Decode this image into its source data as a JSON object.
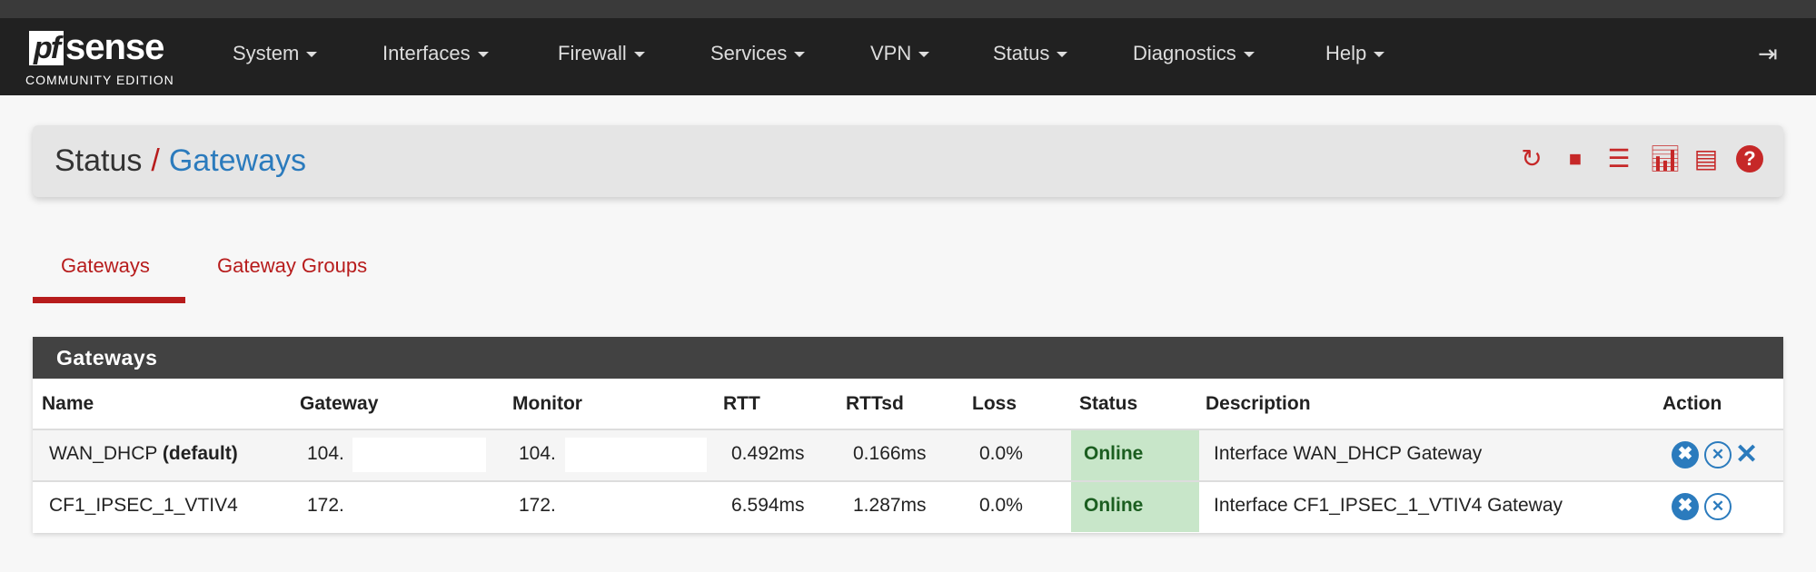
{
  "brand": {
    "logo_mark": "pf",
    "logo_word": "sense",
    "edition": "COMMUNITY EDITION"
  },
  "nav": {
    "items": [
      "System",
      "Interfaces",
      "Firewall",
      "Services",
      "VPN",
      "Status",
      "Diagnostics",
      "Help"
    ],
    "logout_icon": "sign-out-icon"
  },
  "breadcrumb": {
    "parent": "Status",
    "separator": "/",
    "current": "Gateways",
    "icons": [
      "refresh-icon",
      "stop-circle-icon",
      "sliders-icon",
      "bar-chart-icon",
      "list-icon",
      "help-icon"
    ]
  },
  "tabs": [
    {
      "label": "Gateways",
      "active": true
    },
    {
      "label": "Gateway Groups",
      "active": false
    }
  ],
  "panel": {
    "title": "Gateways",
    "columns": [
      "Name",
      "Gateway",
      "Monitor",
      "RTT",
      "RTTsd",
      "Loss",
      "Status",
      "Description",
      "Action"
    ],
    "rows": [
      {
        "name": "WAN_DHCP",
        "name_suffix": "(default)",
        "gateway": "104.",
        "monitor": "104.",
        "rtt": "0.492ms",
        "rttsd": "0.166ms",
        "loss": "0.0%",
        "status": "Online",
        "description": "Interface WAN_DHCP Gateway",
        "actions": [
          "remove-circle-icon",
          "remove-circle-outline-icon",
          "delete-x-icon"
        ]
      },
      {
        "name": "CF1_IPSEC_1_VTIV4",
        "name_suffix": "",
        "gateway": "172.",
        "monitor": "172.",
        "rtt": "6.594ms",
        "rttsd": "1.287ms",
        "loss": "0.0%",
        "status": "Online",
        "description": "Interface CF1_IPSEC_1_VTIV4 Gateway",
        "actions": [
          "remove-circle-icon",
          "remove-circle-outline-icon"
        ]
      }
    ]
  },
  "colors": {
    "navbar": "#212121",
    "accent_red": "#b71c1c",
    "link_blue": "#2b7bbd",
    "online_bg": "#c8e6c9",
    "online_text": "#1b5e20"
  }
}
